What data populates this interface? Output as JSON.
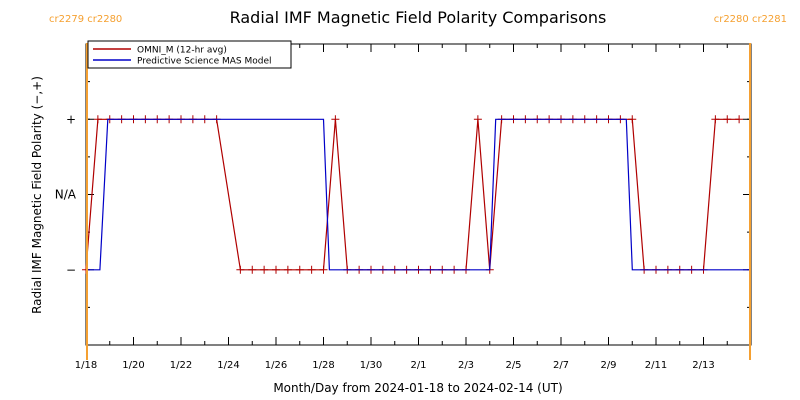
{
  "chart_data": {
    "type": "line",
    "title": "Radial IMF Magnetic Field Polarity Comparisons",
    "xlabel": "Month/Day from 2024-01-18 to 2024-02-14 (UT)",
    "ylabel": "Radial IMF Magnetic Field Polarity (−,+)",
    "x_unit": "day",
    "xlim": [
      "2024-01-18",
      "2024-02-15"
    ],
    "ylim": [
      -2,
      2
    ],
    "x_ticks": [
      {
        "x": "2024-01-18",
        "label": "1/18"
      },
      {
        "x": "2024-01-20",
        "label": "1/20"
      },
      {
        "x": "2024-01-22",
        "label": "1/22"
      },
      {
        "x": "2024-01-24",
        "label": "1/24"
      },
      {
        "x": "2024-01-26",
        "label": "1/26"
      },
      {
        "x": "2024-01-28",
        "label": "1/28"
      },
      {
        "x": "2024-01-30",
        "label": "1/30"
      },
      {
        "x": "2024-02-01",
        "label": "2/1"
      },
      {
        "x": "2024-02-03",
        "label": "2/3"
      },
      {
        "x": "2024-02-05",
        "label": "2/5"
      },
      {
        "x": "2024-02-07",
        "label": "2/7"
      },
      {
        "x": "2024-02-09",
        "label": "2/9"
      },
      {
        "x": "2024-02-11",
        "label": "2/11"
      },
      {
        "x": "2024-02-13",
        "label": "2/13"
      }
    ],
    "y_ticks": [
      {
        "y": 1,
        "label": "+"
      },
      {
        "y": 0,
        "label": "N/A"
      },
      {
        "y": -1,
        "label": "−"
      }
    ],
    "legend_position": "top-left",
    "grid": false,
    "series": [
      {
        "name": "OMNI_M (12-hr avg)",
        "color": "#b00000",
        "markers": true,
        "points": [
          [
            "2024-01-18 00:00",
            -1
          ],
          [
            "2024-01-18 12:00",
            1
          ],
          [
            "2024-01-19 00:00",
            1
          ],
          [
            "2024-01-19 12:00",
            1
          ],
          [
            "2024-01-20 00:00",
            1
          ],
          [
            "2024-01-20 12:00",
            1
          ],
          [
            "2024-01-21 00:00",
            1
          ],
          [
            "2024-01-21 12:00",
            1
          ],
          [
            "2024-01-22 00:00",
            1
          ],
          [
            "2024-01-22 12:00",
            1
          ],
          [
            "2024-01-23 00:00",
            1
          ],
          [
            "2024-01-23 12:00",
            1
          ],
          [
            "2024-01-24 12:00",
            -1
          ],
          [
            "2024-01-25 00:00",
            -1
          ],
          [
            "2024-01-25 12:00",
            -1
          ],
          [
            "2024-01-26 00:00",
            -1
          ],
          [
            "2024-01-26 12:00",
            -1
          ],
          [
            "2024-01-27 00:00",
            -1
          ],
          [
            "2024-01-27 12:00",
            -1
          ],
          [
            "2024-01-28 00:00",
            -1
          ],
          [
            "2024-01-28 12:00",
            1
          ],
          [
            "2024-01-29 00:00",
            -1
          ],
          [
            "2024-01-29 12:00",
            -1
          ],
          [
            "2024-01-30 00:00",
            -1
          ],
          [
            "2024-01-30 12:00",
            -1
          ],
          [
            "2024-01-31 00:00",
            -1
          ],
          [
            "2024-01-31 12:00",
            -1
          ],
          [
            "2024-02-01 00:00",
            -1
          ],
          [
            "2024-02-01 12:00",
            -1
          ],
          [
            "2024-02-02 00:00",
            -1
          ],
          [
            "2024-02-02 12:00",
            -1
          ],
          [
            "2024-02-03 00:00",
            -1
          ],
          [
            "2024-02-03 12:00",
            1
          ],
          [
            "2024-02-04 00:00",
            -1
          ],
          [
            "2024-02-04 12:00",
            1
          ],
          [
            "2024-02-05 00:00",
            1
          ],
          [
            "2024-02-05 12:00",
            1
          ],
          [
            "2024-02-06 00:00",
            1
          ],
          [
            "2024-02-06 12:00",
            1
          ],
          [
            "2024-02-07 00:00",
            1
          ],
          [
            "2024-02-07 12:00",
            1
          ],
          [
            "2024-02-08 00:00",
            1
          ],
          [
            "2024-02-08 12:00",
            1
          ],
          [
            "2024-02-09 00:00",
            1
          ],
          [
            "2024-02-09 12:00",
            1
          ],
          [
            "2024-02-10 00:00",
            1
          ],
          [
            "2024-02-10 12:00",
            -1
          ],
          [
            "2024-02-11 00:00",
            -1
          ],
          [
            "2024-02-11 12:00",
            -1
          ],
          [
            "2024-02-12 00:00",
            -1
          ],
          [
            "2024-02-12 12:00",
            -1
          ],
          [
            "2024-02-13 00:00",
            -1
          ],
          [
            "2024-02-13 12:00",
            1
          ],
          [
            "2024-02-14 00:00",
            1
          ],
          [
            "2024-02-14 12:00",
            1
          ]
        ]
      },
      {
        "name": "Predictive Science MAS Model",
        "color": "#0000c8",
        "markers": false,
        "points": [
          [
            "2024-01-18 00:00",
            -1
          ],
          [
            "2024-01-18 14:00",
            -1
          ],
          [
            "2024-01-18 22:00",
            1
          ],
          [
            "2024-01-28 00:00",
            1
          ],
          [
            "2024-01-28 06:00",
            -1
          ],
          [
            "2024-02-04 00:00",
            -1
          ],
          [
            "2024-02-04 06:00",
            1
          ],
          [
            "2024-02-09 18:00",
            1
          ],
          [
            "2024-02-10 00:00",
            -1
          ],
          [
            "2024-02-15 00:00",
            -1
          ]
        ]
      }
    ],
    "carrington_markers": [
      {
        "x": "2024-01-18 01:00",
        "labels": [
          "cr2279",
          "cr2280"
        ]
      },
      {
        "x": "2024-02-14 23:00",
        "labels": [
          "cr2280",
          "cr2281"
        ]
      }
    ],
    "marker_line_color": "#f5a030"
  }
}
